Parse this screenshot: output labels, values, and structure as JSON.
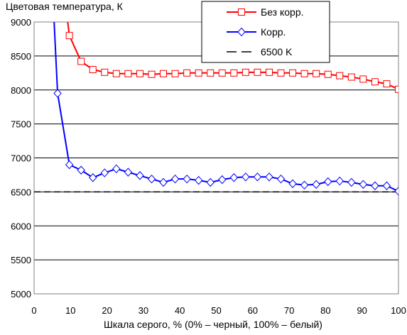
{
  "chart_data": {
    "type": "line",
    "title": "Цветовая температура, К",
    "xlabel": "Шкала серого, % (0% – черный, 100% – белый)",
    "ylabel": "",
    "xlim": [
      0,
      100
    ],
    "ylim": [
      5000,
      9000
    ],
    "xticks": [
      0,
      10,
      20,
      30,
      40,
      50,
      60,
      70,
      80,
      90,
      100
    ],
    "yticks": [
      5000,
      5500,
      6000,
      6500,
      7000,
      7500,
      8000,
      8500,
      9000
    ],
    "grid": "horizontal",
    "legend_position": "top-right",
    "series": [
      {
        "name": "Без корр.",
        "color": "#ff0000",
        "marker": "square",
        "x": [
          6.45,
          9.68,
          12.9,
          16.13,
          19.35,
          22.58,
          25.81,
          29.03,
          32.26,
          35.48,
          38.71,
          41.94,
          45.16,
          48.39,
          51.61,
          54.84,
          58.06,
          61.29,
          64.52,
          67.74,
          70.97,
          74.19,
          77.42,
          80.65,
          83.87,
          87.1,
          90.32,
          93.55,
          96.77,
          100
        ],
        "y": [
          10200,
          8800,
          8420,
          8300,
          8260,
          8240,
          8240,
          8240,
          8230,
          8240,
          8240,
          8250,
          8250,
          8250,
          8250,
          8250,
          8260,
          8260,
          8260,
          8250,
          8250,
          8240,
          8240,
          8230,
          8210,
          8190,
          8160,
          8120,
          8090,
          8010
        ]
      },
      {
        "name": "Корр.",
        "color": "#0000ff",
        "marker": "diamond",
        "x": [
          3.23,
          6.45,
          9.68,
          12.9,
          16.13,
          19.35,
          22.58,
          25.81,
          29.03,
          32.26,
          35.48,
          38.71,
          41.94,
          45.16,
          48.39,
          51.61,
          54.84,
          58.06,
          61.29,
          64.52,
          67.74,
          70.97,
          74.19,
          77.42,
          80.65,
          83.87,
          87.1,
          90.32,
          93.55,
          96.77,
          100
        ],
        "y": [
          11500,
          7950,
          6900,
          6820,
          6710,
          6780,
          6840,
          6790,
          6740,
          6690,
          6640,
          6690,
          6690,
          6670,
          6640,
          6680,
          6710,
          6720,
          6720,
          6720,
          6690,
          6620,
          6600,
          6610,
          6650,
          6660,
          6640,
          6610,
          6590,
          6590,
          6510
        ]
      },
      {
        "name": "6500 K",
        "color": "#000000",
        "marker": "none",
        "dash": "dashed",
        "x": [
          0,
          100
        ],
        "y": [
          6500,
          6500
        ]
      }
    ]
  }
}
